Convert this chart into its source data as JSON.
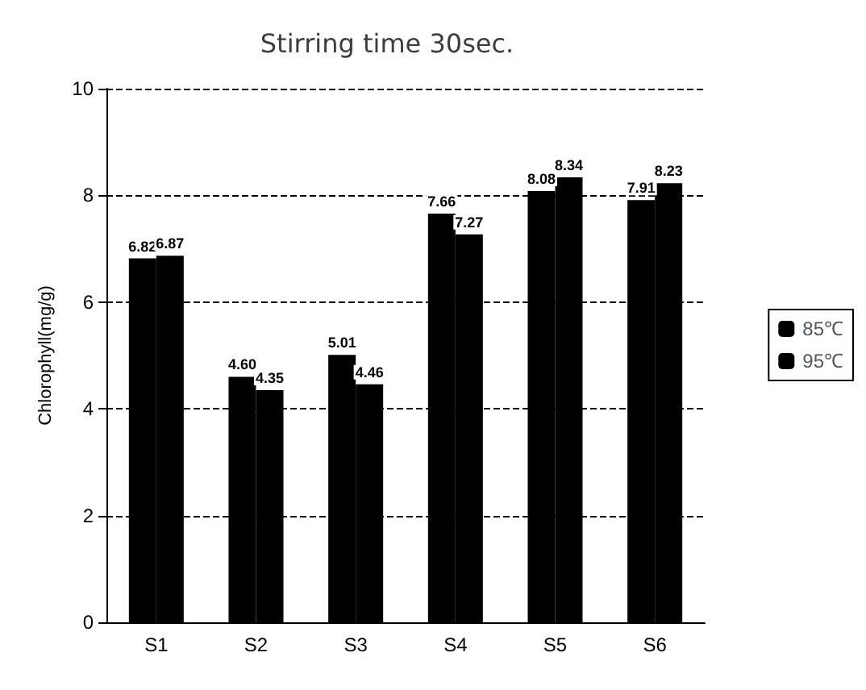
{
  "chart_data": {
    "type": "bar",
    "title": "Stirring time 30sec.",
    "ylabel": "Chlorophyll(mg/g)",
    "categories": [
      "S1",
      "S2",
      "S3",
      "S4",
      "S5",
      "S6"
    ],
    "series": [
      {
        "name": "85℃",
        "color": "#000000",
        "values": [
          6.82,
          4.6,
          5.01,
          7.66,
          8.08,
          7.91
        ],
        "value_labels": [
          "6.82",
          "4.60",
          "5.01",
          "7.66",
          "8.08",
          "7.91"
        ]
      },
      {
        "name": "95℃",
        "color": "#000000",
        "values": [
          6.87,
          4.35,
          4.46,
          7.27,
          8.34,
          8.23
        ],
        "value_labels": [
          "6.87",
          "4.35",
          "4.46",
          "7.27",
          "8.34",
          "8.23"
        ]
      }
    ],
    "ylim": [
      0,
      10
    ],
    "yticks": [
      0,
      2,
      4,
      6,
      8,
      10
    ],
    "grid": "y",
    "line_style": "dashed",
    "legend": "right"
  }
}
